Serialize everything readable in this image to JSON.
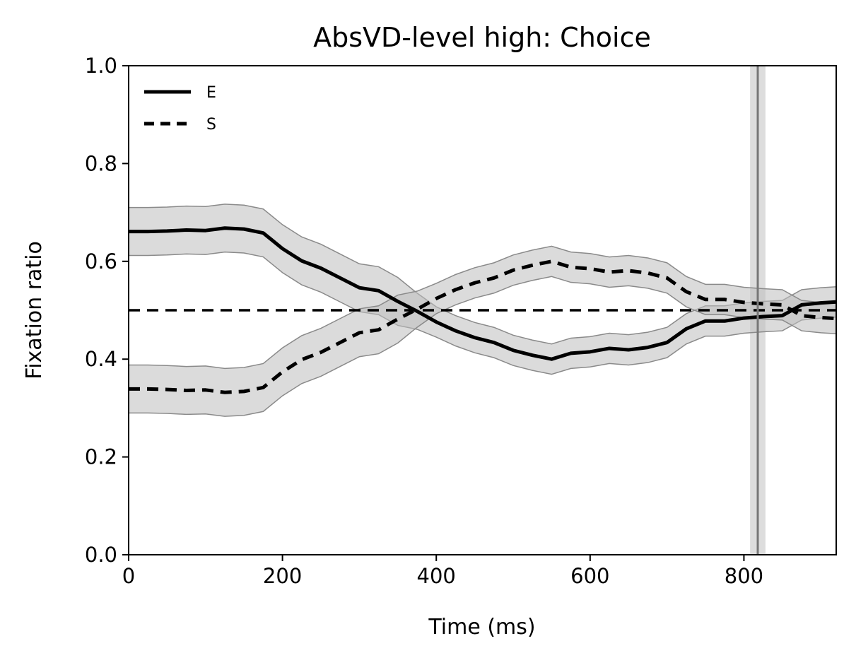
{
  "chart_data": {
    "type": "line",
    "title": "AbsVD-level high: Choice",
    "xlabel": "Time (ms)",
    "ylabel": "Fixation ratio",
    "xlim": [
      0,
      920
    ],
    "ylim": [
      0,
      1.0
    ],
    "xticks": [
      0,
      200,
      400,
      600,
      800
    ],
    "yticks": [
      0.0,
      0.2,
      0.4,
      0.6,
      0.8,
      1.0
    ],
    "x_tick_labels": [
      "0",
      "200",
      "400",
      "600",
      "800"
    ],
    "y_tick_labels": [
      "0.0",
      "0.2",
      "0.4",
      "0.6",
      "0.8",
      "1.0"
    ],
    "legend_position": "top-left",
    "grid": false,
    "x": [
      0,
      25,
      50,
      75,
      100,
      125,
      150,
      175,
      200,
      225,
      250,
      275,
      300,
      325,
      350,
      375,
      400,
      425,
      450,
      475,
      500,
      525,
      550,
      575,
      600,
      625,
      650,
      675,
      700,
      725,
      750,
      775,
      800,
      825,
      850,
      875,
      900,
      920
    ],
    "series": [
      {
        "name": "E",
        "style": "solid",
        "color": "#000000",
        "values": [
          0.661,
          0.661,
          0.662,
          0.664,
          0.663,
          0.668,
          0.666,
          0.658,
          0.626,
          0.601,
          0.586,
          0.566,
          0.546,
          0.54,
          0.518,
          0.498,
          0.476,
          0.458,
          0.444,
          0.434,
          0.418,
          0.408,
          0.4,
          0.412,
          0.415,
          0.422,
          0.419,
          0.424,
          0.434,
          0.462,
          0.478,
          0.478,
          0.484,
          0.487,
          0.489,
          0.511,
          0.515,
          0.517
        ],
        "ci_lower": [
          0.612,
          0.612,
          0.613,
          0.615,
          0.614,
          0.619,
          0.617,
          0.609,
          0.577,
          0.552,
          0.537,
          0.517,
          0.497,
          0.491,
          0.469,
          0.461,
          0.445,
          0.427,
          0.413,
          0.403,
          0.387,
          0.377,
          0.369,
          0.381,
          0.384,
          0.391,
          0.388,
          0.393,
          0.403,
          0.431,
          0.447,
          0.447,
          0.453,
          0.456,
          0.458,
          0.48,
          0.484,
          0.486
        ],
        "ci_upper": [
          0.71,
          0.71,
          0.711,
          0.713,
          0.712,
          0.717,
          0.715,
          0.707,
          0.675,
          0.65,
          0.635,
          0.615,
          0.595,
          0.589,
          0.567,
          0.535,
          0.507,
          0.489,
          0.475,
          0.465,
          0.449,
          0.439,
          0.431,
          0.443,
          0.446,
          0.453,
          0.45,
          0.455,
          0.465,
          0.493,
          0.509,
          0.509,
          0.515,
          0.518,
          0.52,
          0.542,
          0.546,
          0.548
        ]
      },
      {
        "name": "S",
        "style": "dashed",
        "color": "#000000",
        "values": [
          0.339,
          0.339,
          0.338,
          0.336,
          0.337,
          0.332,
          0.334,
          0.342,
          0.374,
          0.399,
          0.414,
          0.434,
          0.454,
          0.46,
          0.482,
          0.502,
          0.524,
          0.542,
          0.556,
          0.566,
          0.582,
          0.592,
          0.6,
          0.588,
          0.585,
          0.578,
          0.581,
          0.576,
          0.566,
          0.538,
          0.522,
          0.522,
          0.516,
          0.513,
          0.511,
          0.489,
          0.485,
          0.483
        ],
        "ci_lower": [
          0.29,
          0.29,
          0.289,
          0.287,
          0.288,
          0.283,
          0.285,
          0.293,
          0.325,
          0.35,
          0.365,
          0.385,
          0.405,
          0.411,
          0.433,
          0.465,
          0.493,
          0.511,
          0.525,
          0.535,
          0.551,
          0.561,
          0.569,
          0.557,
          0.554,
          0.547,
          0.55,
          0.545,
          0.535,
          0.507,
          0.491,
          0.491,
          0.485,
          0.482,
          0.48,
          0.458,
          0.454,
          0.452
        ],
        "ci_upper": [
          0.388,
          0.388,
          0.387,
          0.385,
          0.386,
          0.381,
          0.383,
          0.391,
          0.423,
          0.448,
          0.463,
          0.483,
          0.503,
          0.509,
          0.531,
          0.539,
          0.555,
          0.573,
          0.587,
          0.597,
          0.613,
          0.623,
          0.631,
          0.619,
          0.616,
          0.609,
          0.612,
          0.607,
          0.597,
          0.569,
          0.553,
          0.553,
          0.547,
          0.544,
          0.542,
          0.52,
          0.516,
          0.514
        ]
      }
    ],
    "reference_hline": {
      "y": 0.5,
      "style": "dashed",
      "color": "#000000"
    },
    "reference_vline": {
      "x": 818,
      "band": [
        808,
        828
      ],
      "color": "#777777",
      "band_color": "#dddddd"
    },
    "ci_fill_color": "#bdbdbd"
  }
}
